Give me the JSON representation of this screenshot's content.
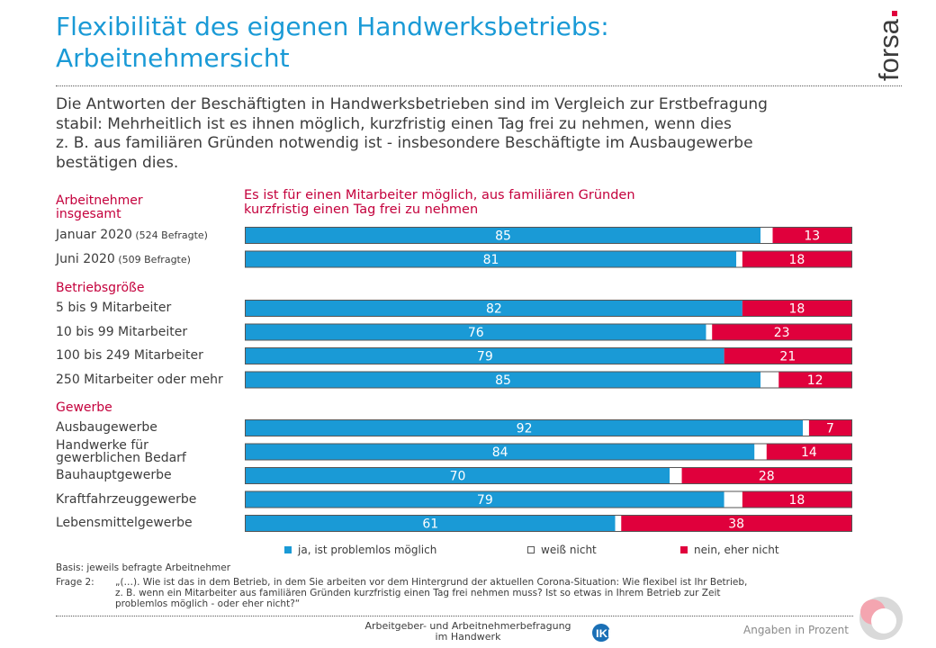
{
  "header": {
    "title": "Flexibilität des eigenen Handwerksbetriebs:\nArbeitnehmersicht",
    "logo": "forsa",
    "intro": "Die Antworten der Beschäftigten in Handwerksbetrieben sind im Vergleich zur Erstbefragung\nstabil: Mehrheitlich ist es ihnen möglich, kurzfristig einen Tag frei zu nehmen, wenn dies\nz. B. aus familiären Gründen notwendig ist - insbesondere Beschäftigte im Ausbaugewerbe\nbestätigen dies."
  },
  "colors": {
    "accent": "#1a9ad6",
    "yes": "#1a9ad6",
    "dontknow": "#ffffff",
    "no": "#e0003c",
    "section": "#c4003c"
  },
  "chart_data": {
    "type": "bar",
    "orientation": "horizontal-stacked-100",
    "title": "Es ist für einen Mitarbeiter möglich, aus familiären Gründen\nkurzfristig einen Tag frei zu nehmen",
    "groups": [
      {
        "label": "Arbeitnehmer\ninsgesamt",
        "rows": [
          {
            "label": "Januar 2020",
            "note": "(524 Befragte)",
            "yes": 85,
            "no": 13
          },
          {
            "label": "Juni 2020",
            "note": "(509 Befragte)",
            "yes": 81,
            "no": 18
          }
        ]
      },
      {
        "label": "Betriebsgröße",
        "rows": [
          {
            "label": "5 bis 9 Mitarbeiter",
            "note": "",
            "yes": 82,
            "no": 18
          },
          {
            "label": "10 bis 99 Mitarbeiter",
            "note": "",
            "yes": 76,
            "no": 23
          },
          {
            "label": "100 bis 249 Mitarbeiter",
            "note": "",
            "yes": 79,
            "no": 21
          },
          {
            "label": "250 Mitarbeiter oder mehr",
            "note": "",
            "yes": 85,
            "no": 12
          }
        ]
      },
      {
        "label": "Gewerbe",
        "rows": [
          {
            "label": "Ausbaugewerbe",
            "note": "",
            "yes": 92,
            "no": 7
          },
          {
            "label": "Handwerke für\ngewerblichen Bedarf",
            "note": "",
            "yes": 84,
            "no": 14
          },
          {
            "label": "Bauhauptgewerbe",
            "note": "",
            "yes": 70,
            "no": 28
          },
          {
            "label": "Kraftfahrzeuggewerbe",
            "note": "",
            "yes": 79,
            "no": 18
          },
          {
            "label": "Lebensmittelgewerbe",
            "note": "",
            "yes": 61,
            "no": 38
          }
        ]
      }
    ],
    "legend": [
      {
        "key": "yes",
        "label": "ja, ist problemlos möglich",
        "color": "#1a9ad6"
      },
      {
        "key": "dontknow",
        "label": "weiß nicht",
        "color": "#ffffff"
      },
      {
        "key": "no",
        "label": "nein, eher nicht",
        "color": "#e0003c"
      }
    ],
    "legend_position": "bottom",
    "xlim": [
      0,
      100
    ]
  },
  "footer": {
    "basis": "Basis: jeweils befragte Arbeitnehmer",
    "frage_label": "Frage 2:",
    "frage_text": "„(…). Wie ist das in dem Betrieb, in dem Sie arbeiten vor dem Hintergrund der aktuellen Corona-Situation: Wie flexibel ist Ihr Betrieb,\nz. B. wenn ein Mitarbeiter aus familiären Gründen kurzfristig einen Tag frei nehmen muss? Ist so etwas in Ihrem Betrieb zur Zeit\nproblemlos möglich - oder eher nicht?“",
    "center": "Arbeitgeber- und Arbeitnehmerbefragung\nim Handwerk",
    "sponsor": "IKK classic",
    "unit": "Angaben in Prozent"
  }
}
